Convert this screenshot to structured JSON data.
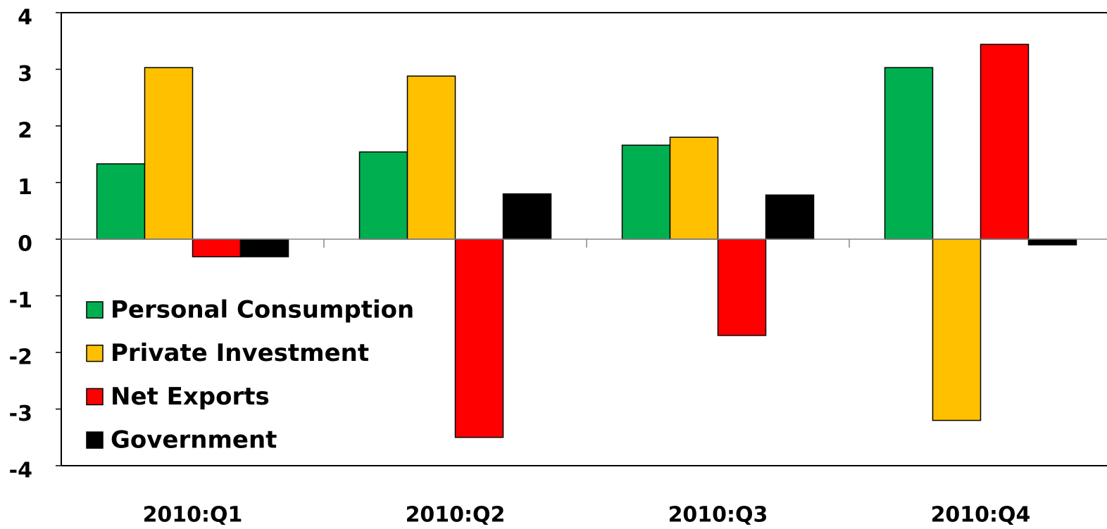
{
  "chart_data": {
    "type": "bar",
    "categories": [
      "2010:Q1",
      "2010:Q2",
      "2010:Q3",
      "2010:Q4"
    ],
    "series": [
      {
        "name": "Personal Consumption",
        "color": "#00b050",
        "values": [
          1.33,
          1.54,
          1.66,
          3.03
        ]
      },
      {
        "name": "Private Investment",
        "color": "#ffc000",
        "values": [
          3.03,
          2.88,
          1.8,
          -3.2
        ]
      },
      {
        "name": "Net Exports",
        "color": "#ff0000",
        "values": [
          -0.31,
          -3.5,
          -1.7,
          3.44
        ]
      },
      {
        "name": "Government",
        "color": "#000000",
        "values": [
          -0.31,
          0.8,
          0.78,
          -0.1
        ]
      }
    ],
    "ylim": [
      -4,
      4
    ],
    "yticks": [
      -4,
      -3,
      -2,
      -1,
      0,
      1,
      2,
      3,
      4
    ],
    "legend": "left"
  }
}
